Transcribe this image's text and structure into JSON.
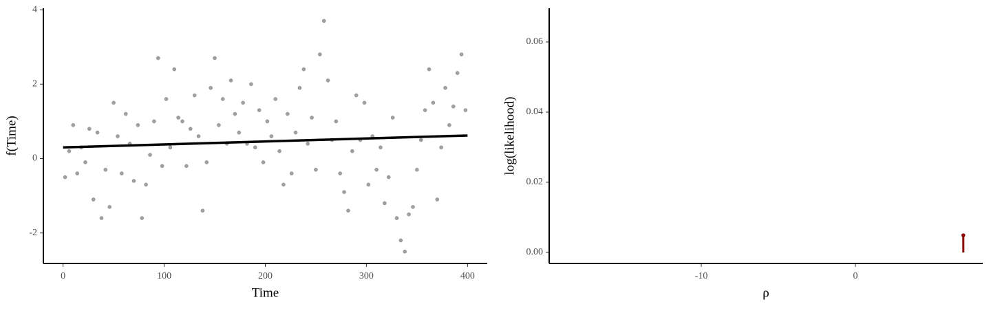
{
  "chart_data": [
    {
      "type": "scatter",
      "x_label": "Time",
      "y_label": "f(Time)",
      "xlim": [
        -19.5,
        419.5
      ],
      "ylim": [
        -2.82,
        4.04
      ],
      "xticks": [
        0,
        100,
        200,
        300,
        400
      ],
      "yticks": [
        -2,
        0,
        2,
        4
      ],
      "series": [
        {
          "type": "scatter",
          "color": "#808080",
          "x": [
            2,
            6,
            10,
            14,
            18,
            22,
            26,
            30,
            34,
            38,
            42,
            46,
            50,
            54,
            58,
            62,
            66,
            70,
            74,
            78,
            82,
            86,
            90,
            94,
            98,
            102,
            106,
            110,
            114,
            118,
            122,
            126,
            130,
            134,
            138,
            142,
            146,
            150,
            154,
            158,
            162,
            166,
            170,
            174,
            178,
            182,
            186,
            190,
            194,
            198,
            202,
            206,
            210,
            214,
            218,
            222,
            226,
            230,
            234,
            238,
            242,
            246,
            250,
            254,
            258,
            262,
            266,
            270,
            274,
            278,
            282,
            286,
            290,
            294,
            298,
            302,
            306,
            310,
            314,
            318,
            322,
            326,
            330,
            334,
            338,
            342,
            346,
            350,
            354,
            358,
            362,
            366,
            370,
            374,
            378,
            382,
            386,
            390,
            394,
            398
          ],
          "values": [
            -0.5,
            0.2,
            0.9,
            -0.4,
            0.3,
            -0.1,
            0.8,
            -1.1,
            0.7,
            -1.6,
            -0.3,
            -1.3,
            1.5,
            0.6,
            -0.4,
            1.2,
            0.4,
            -0.6,
            0.9,
            -1.6,
            -0.7,
            0.1,
            1.0,
            2.7,
            -0.2,
            1.6,
            0.3,
            2.4,
            1.1,
            1.0,
            -0.2,
            0.8,
            1.7,
            0.6,
            -1.4,
            -0.1,
            1.9,
            2.7,
            0.9,
            1.6,
            0.4,
            2.1,
            1.2,
            0.7,
            1.5,
            0.4,
            2.0,
            0.3,
            1.3,
            -0.1,
            1.0,
            0.6,
            1.6,
            0.2,
            -0.7,
            1.2,
            -0.4,
            0.7,
            1.9,
            2.4,
            0.4,
            1.1,
            -0.3,
            2.8,
            3.7,
            2.1,
            0.5,
            1.0,
            -0.4,
            -0.9,
            -1.4,
            0.2,
            1.7,
            0.5,
            1.5,
            -0.7,
            0.6,
            -0.3,
            0.3,
            -1.2,
            -0.5,
            1.1,
            -1.6,
            -2.2,
            -2.5,
            -1.5,
            -1.3,
            -0.3,
            0.5,
            1.3,
            2.4,
            1.5,
            -1.1,
            0.3,
            1.9,
            0.9,
            1.4,
            2.3,
            2.8,
            1.3
          ]
        },
        {
          "type": "line",
          "color": "#000000",
          "x": [
            0,
            400
          ],
          "values": [
            0.3,
            0.62
          ]
        }
      ]
    },
    {
      "type": "errorbar",
      "x_label": "ρ",
      "y_label": "log(likelihood)",
      "xlim": [
        -19.87,
        8.26
      ],
      "ylim": [
        -0.00314,
        0.0696
      ],
      "xticks": [
        -10,
        0
      ],
      "yticks": [
        {
          "value": 0,
          "label": "0.00"
        },
        {
          "value": 0.02,
          "label": "0.02"
        },
        {
          "value": 0.04,
          "label": "0.04"
        },
        {
          "value": 0.06,
          "label": "0.06"
        }
      ],
      "series": [
        {
          "type": "errorbar",
          "color": "#8b0000",
          "x": [
            7.0
          ],
          "values": [
            0.0049
          ],
          "lower": [
            0
          ],
          "upper": [
            0.0049
          ]
        }
      ]
    }
  ]
}
